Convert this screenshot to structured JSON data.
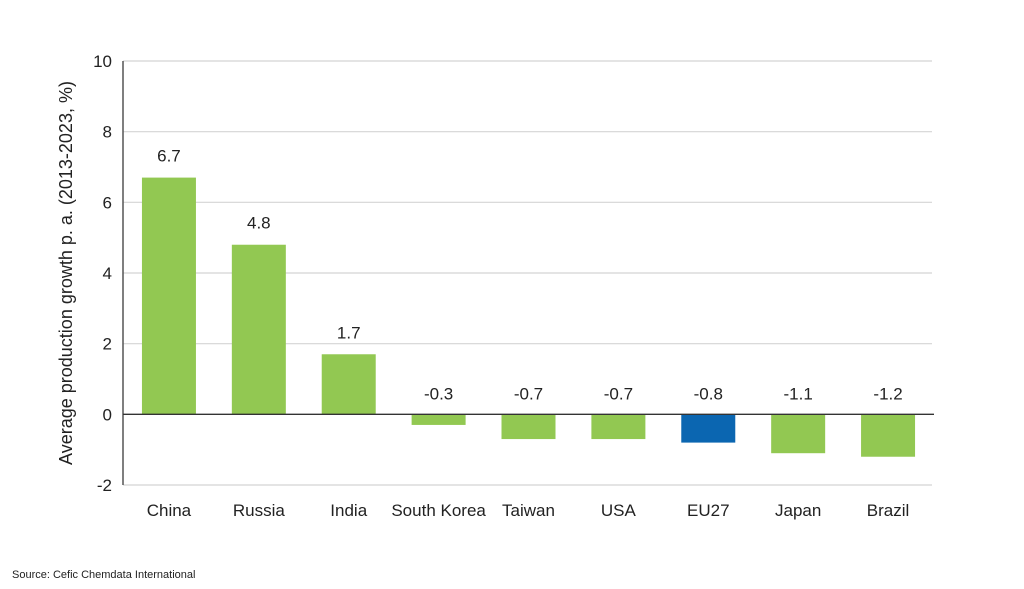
{
  "chart_data": {
    "type": "bar",
    "categories": [
      "China",
      "Russia",
      "India",
      "South Korea",
      "Taiwan",
      "USA",
      "EU27",
      "Japan",
      "Brazil"
    ],
    "values": [
      6.7,
      4.8,
      1.7,
      -0.3,
      -0.7,
      -0.7,
      -0.8,
      -1.1,
      -1.2
    ],
    "data_labels": [
      "6.7",
      "4.8",
      "1.7",
      "-0.3",
      "-0.7",
      "-0.7",
      "-0.8",
      "-1.1",
      "-1.2"
    ],
    "title": "",
    "xlabel": "",
    "ylabel": "Average production growth p. a. (2013-2023, %)",
    "ylim": [
      -2,
      10
    ],
    "yticks": [
      -2,
      0,
      2,
      4,
      6,
      8,
      10
    ],
    "grid": true,
    "legend": "none",
    "colors": {
      "default": "#92c852",
      "highlight": "#0b66b1",
      "highlight_category": "EU27"
    }
  },
  "source": "Source: Cefic Chemdata International"
}
